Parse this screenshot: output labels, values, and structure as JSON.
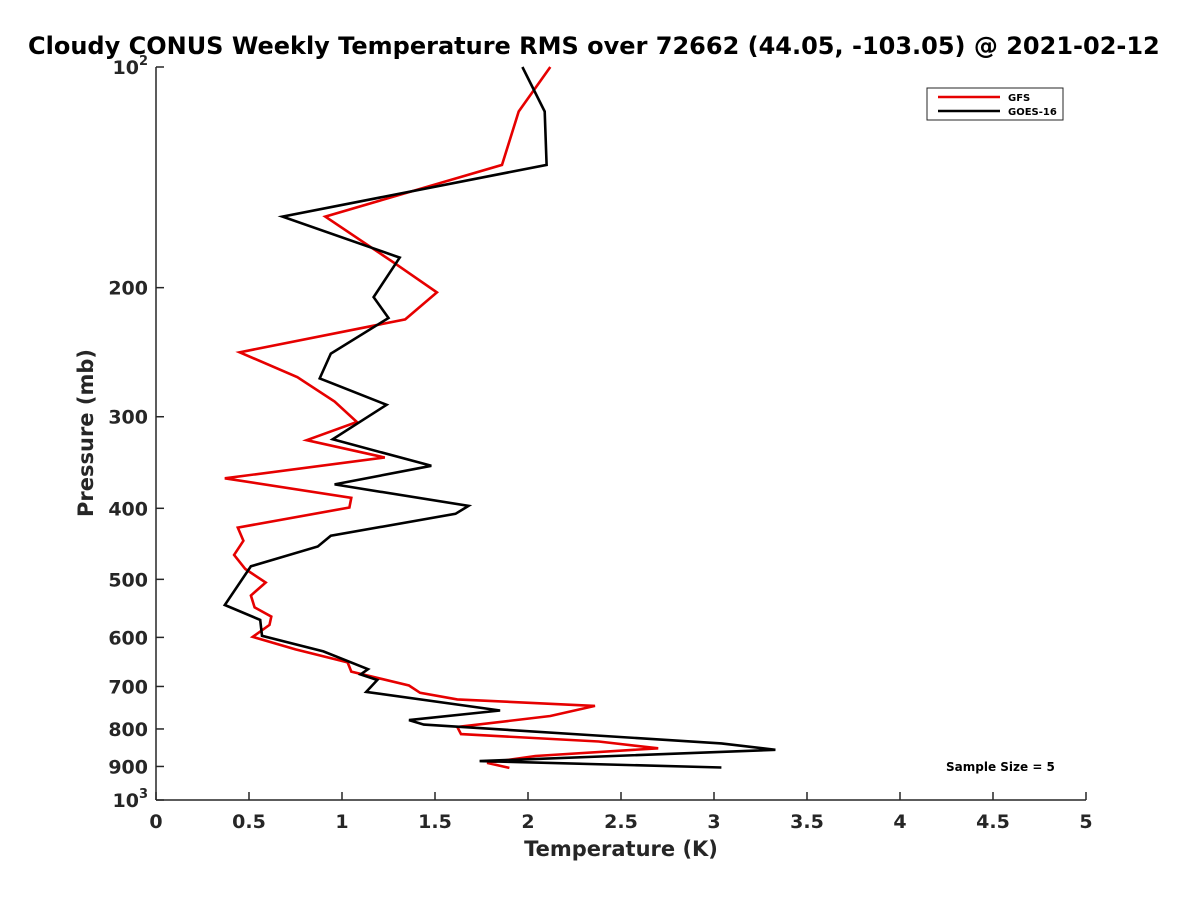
{
  "chart_data": {
    "type": "line",
    "title": "Cloudy CONUS Weekly Temperature RMS over 72662 (44.05, -103.05) @ 2021-02-12",
    "xlabel": "Temperature (K)",
    "ylabel": "Pressure (mb)",
    "xlim": [
      0,
      5
    ],
    "ylim": [
      100,
      1000
    ],
    "y_scale": "log",
    "y_reversed": true,
    "x_ticks": [
      "0",
      "0.5",
      "1",
      "1.5",
      "2",
      "2.5",
      "3",
      "3.5",
      "4",
      "4.5",
      "5"
    ],
    "y_ticks": [
      {
        "value": 100,
        "label": "10",
        "sup": "2"
      },
      {
        "value": 200,
        "label": "200",
        "sup": ""
      },
      {
        "value": 300,
        "label": "300",
        "sup": ""
      },
      {
        "value": 400,
        "label": "400",
        "sup": ""
      },
      {
        "value": 500,
        "label": "500",
        "sup": ""
      },
      {
        "value": 600,
        "label": "600",
        "sup": ""
      },
      {
        "value": 700,
        "label": "700",
        "sup": ""
      },
      {
        "value": 800,
        "label": "800",
        "sup": ""
      },
      {
        "value": 900,
        "label": "900",
        "sup": ""
      },
      {
        "value": 1000,
        "label": "10",
        "sup": "3"
      }
    ],
    "grid": false,
    "legend_position": "top-right",
    "annotation": "Sample Size = 5",
    "series": [
      {
        "name": "GFS",
        "color": "#e60000",
        "points": [
          [
            2.12,
            100
          ],
          [
            1.95,
            115
          ],
          [
            1.86,
            136
          ],
          [
            0.91,
            160
          ],
          [
            1.28,
            185
          ],
          [
            1.51,
            203
          ],
          [
            1.34,
            221
          ],
          [
            0.45,
            245
          ],
          [
            0.76,
            265
          ],
          [
            0.96,
            286
          ],
          [
            1.08,
            305
          ],
          [
            0.81,
            323
          ],
          [
            1.23,
            341
          ],
          [
            0.37,
            364
          ],
          [
            1.05,
            387
          ],
          [
            1.04,
            399
          ],
          [
            0.44,
            425
          ],
          [
            0.47,
            443
          ],
          [
            0.42,
            463
          ],
          [
            0.48,
            484
          ],
          [
            0.59,
            505
          ],
          [
            0.51,
            526
          ],
          [
            0.53,
            546
          ],
          [
            0.62,
            562
          ],
          [
            0.61,
            577
          ],
          [
            0.52,
            599
          ],
          [
            0.75,
            623
          ],
          [
            1.03,
            649
          ],
          [
            1.05,
            668
          ],
          [
            1.36,
            698
          ],
          [
            1.42,
            714
          ],
          [
            1.62,
            729
          ],
          [
            2.36,
            744
          ],
          [
            2.12,
            768
          ],
          [
            1.62,
            795
          ],
          [
            1.64,
            813
          ],
          [
            2.38,
            832
          ],
          [
            2.7,
            850
          ],
          [
            2.04,
            871
          ],
          [
            1.78,
            890
          ],
          [
            1.9,
            904
          ]
        ]
      },
      {
        "name": "GOES-16",
        "color": "#000000",
        "points": [
          [
            1.97,
            100
          ],
          [
            2.09,
            115
          ],
          [
            2.1,
            136
          ],
          [
            0.68,
            160
          ],
          [
            1.31,
            182
          ],
          [
            1.17,
            206
          ],
          [
            1.25,
            220
          ],
          [
            0.94,
            246
          ],
          [
            0.88,
            266
          ],
          [
            1.24,
            289
          ],
          [
            0.95,
            322
          ],
          [
            1.48,
            350
          ],
          [
            0.96,
            371
          ],
          [
            1.68,
            397
          ],
          [
            1.61,
            407
          ],
          [
            0.94,
            436
          ],
          [
            0.87,
            451
          ],
          [
            0.51,
            480
          ],
          [
            0.37,
            542
          ],
          [
            0.56,
            568
          ],
          [
            0.57,
            597
          ],
          [
            0.9,
            627
          ],
          [
            1.14,
            663
          ],
          [
            1.1,
            674
          ],
          [
            1.19,
            686
          ],
          [
            1.13,
            712
          ],
          [
            1.85,
            755
          ],
          [
            1.36,
            778
          ],
          [
            1.44,
            789
          ],
          [
            3.04,
            837
          ],
          [
            3.33,
            854
          ],
          [
            1.74,
            885
          ],
          [
            3.04,
            903
          ]
        ]
      }
    ]
  }
}
